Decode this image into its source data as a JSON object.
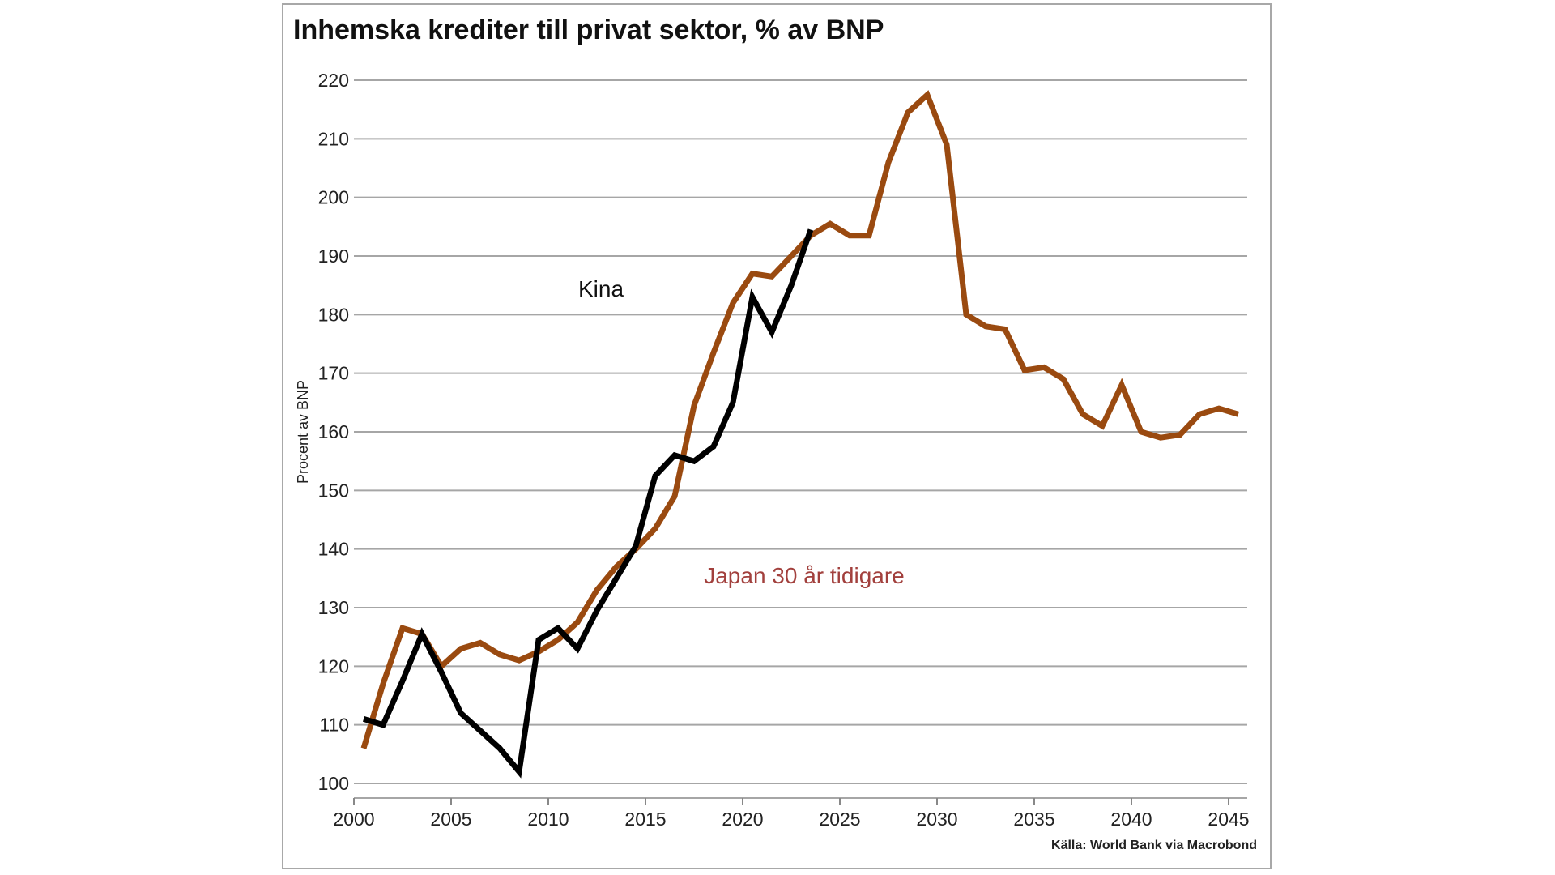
{
  "chart_data": {
    "type": "line",
    "title": "Inhemska krediter till privat sektor, % av BNP",
    "ylabel": "Procent av BNP",
    "xlabel": "",
    "source": "Källa: World Bank via Macrobond",
    "ylim": [
      100,
      220
    ],
    "xlim": [
      2000,
      2046
    ],
    "yticks": [
      100,
      110,
      120,
      130,
      140,
      150,
      160,
      170,
      180,
      190,
      200,
      210,
      220
    ],
    "xticks": [
      2000,
      2005,
      2010,
      2015,
      2020,
      2025,
      2030,
      2035,
      2040,
      2045
    ],
    "grid": true,
    "series": [
      {
        "name": "Japan 30 år tidigare",
        "color": "#9a4a10",
        "label_color": "#a2403d",
        "x": [
          2000.5,
          2001.5,
          2002.5,
          2003.5,
          2004.5,
          2005.5,
          2006.5,
          2007.5,
          2008.5,
          2009.5,
          2010.5,
          2011.5,
          2012.5,
          2013.5,
          2014.5,
          2015.5,
          2016.5,
          2017.5,
          2018.5,
          2019.5,
          2020.5,
          2021.5,
          2022.5,
          2023.5,
          2024.5,
          2025.5,
          2026.5,
          2027.5,
          2028.5,
          2029.5,
          2030.5,
          2031.5,
          2032.5,
          2033.5,
          2034.5,
          2035.5,
          2036.5,
          2037.5,
          2038.5,
          2039.5,
          2040.5,
          2041.5,
          2042.5,
          2043.5,
          2044.5,
          2045.5
        ],
        "values": [
          106,
          117,
          126.5,
          125.5,
          120,
          123,
          124,
          122,
          121,
          122.5,
          124.5,
          127.5,
          133,
          137,
          140,
          143.5,
          149,
          164.5,
          173.5,
          182,
          187,
          186.5,
          190,
          193.5,
          195.5,
          193.5,
          193.5,
          206,
          214.5,
          217.5,
          209,
          180,
          178,
          177.5,
          170.5,
          171,
          169,
          163,
          161,
          168,
          160,
          159,
          159.5,
          163,
          164,
          163
        ]
      },
      {
        "name": "Kina",
        "color": "#000000",
        "label_color": "#111111",
        "x": [
          2000.5,
          2001.5,
          2002.5,
          2003.5,
          2004.5,
          2005.5,
          2006.5,
          2007.5,
          2008.5,
          2009.5,
          2010.5,
          2011.5,
          2012.5,
          2013.5,
          2014.5,
          2015.5,
          2016.5,
          2017.5,
          2018.5,
          2019.5,
          2020.5,
          2021.5,
          2022.5,
          2023.5
        ],
        "values": [
          111,
          110,
          117.5,
          125.5,
          119,
          112,
          109,
          106,
          102,
          124.5,
          126.5,
          123,
          129.5,
          135,
          140.5,
          152.5,
          156,
          155,
          157.5,
          165,
          183,
          177,
          185,
          194.5
        ]
      }
    ]
  }
}
